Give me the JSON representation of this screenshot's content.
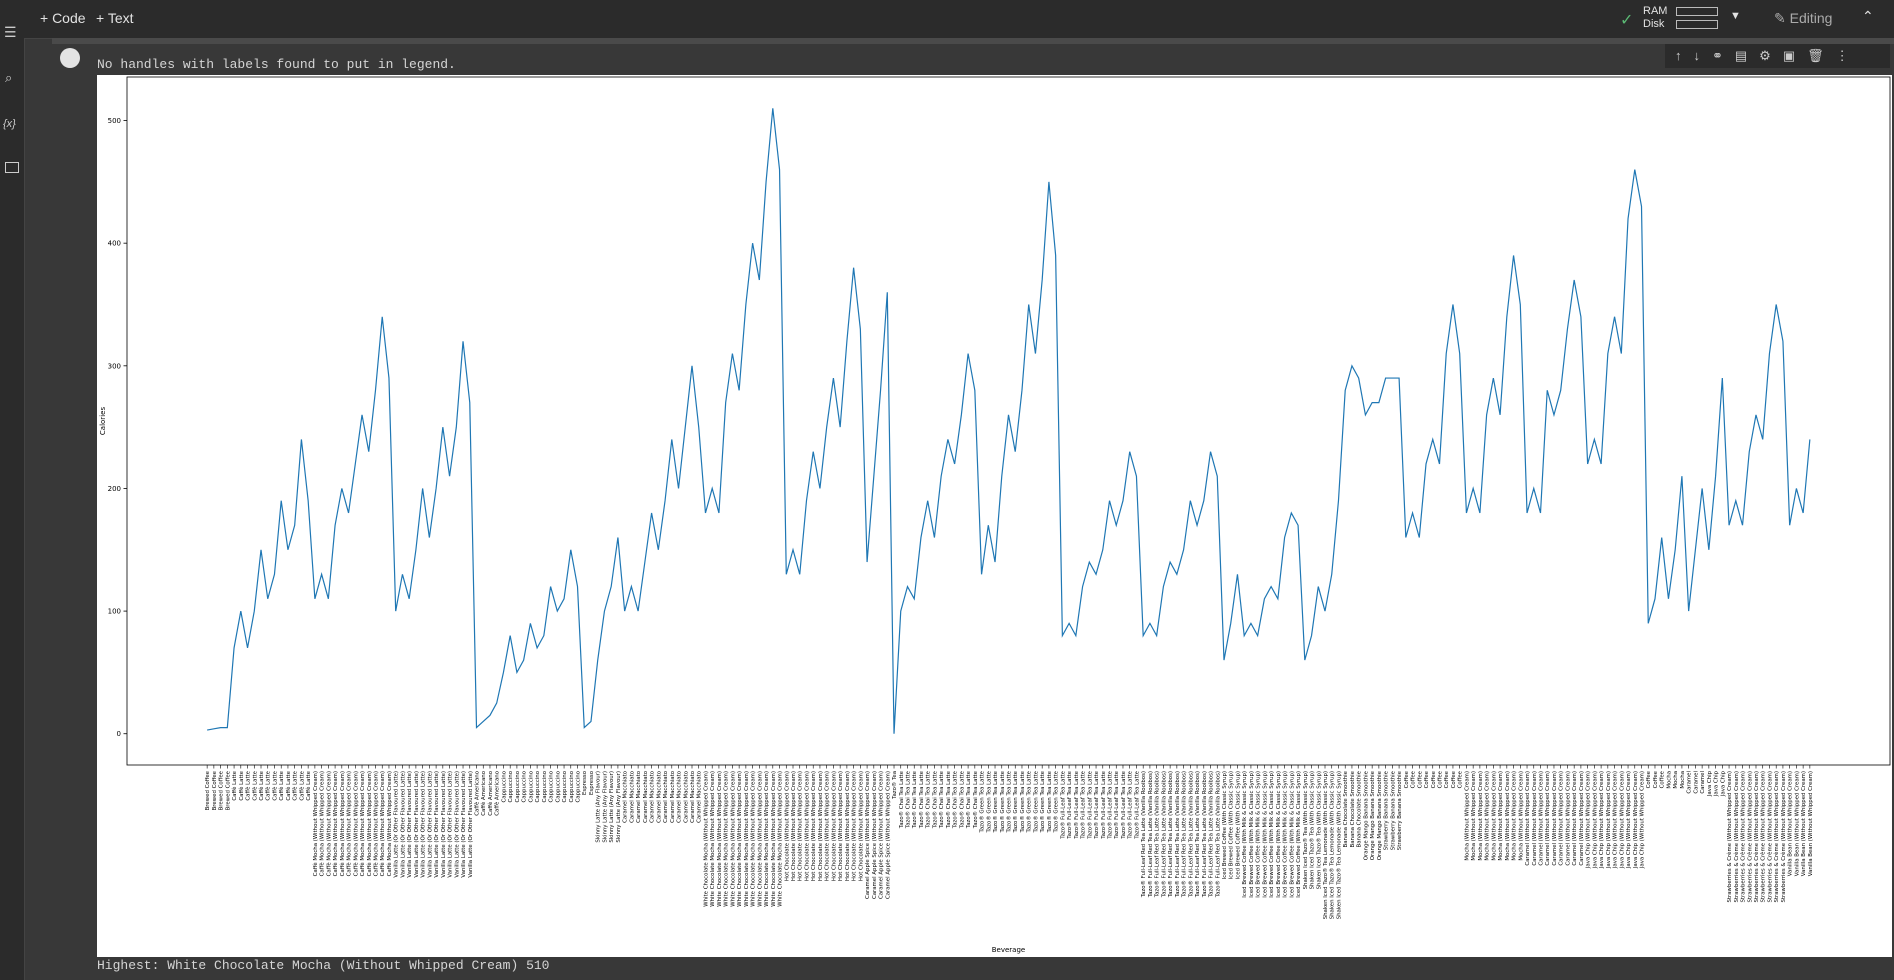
{
  "ui": {
    "add_code": "+ Code",
    "add_text": "+ Text",
    "ram": "RAM",
    "disk": "Disk",
    "editing": "Editing",
    "output_warning": "No handles with labels found to put in legend.",
    "output_result": "Highest: White Chocolate Mocha (Without Whipped Cream) 510"
  },
  "chart_data": {
    "type": "line",
    "xlabel": "Beverage",
    "ylabel": "Calories",
    "color": "#1f77b4",
    "ylim": [
      -25.5,
      535.5
    ],
    "yticks": [
      0,
      100,
      200,
      300,
      400,
      500
    ],
    "categories": [
      "Brewed Coffee",
      "Brewed Coffee",
      "Brewed Coffee",
      "Brewed Coffee",
      "Caffè Latte",
      "Caffè Latte",
      "Caffè Latte",
      "Caffè Latte",
      "Caffè Latte",
      "Caffè Latte",
      "Caffè Latte",
      "Caffè Latte",
      "Caffè Latte",
      "Caffè Latte",
      "Caffè Latte",
      "Caffè Latte",
      "Caffè Mocha (Without Whipped Cream)",
      "Caffè Mocha (Without Whipped Cream)",
      "Caffè Mocha (Without Whipped Cream)",
      "Caffè Mocha (Without Whipped Cream)",
      "Caffè Mocha (Without Whipped Cream)",
      "Caffè Mocha (Without Whipped Cream)",
      "Caffè Mocha (Without Whipped Cream)",
      "Caffè Mocha (Without Whipped Cream)",
      "Caffè Mocha (Without Whipped Cream)",
      "Caffè Mocha (Without Whipped Cream)",
      "Caffè Mocha (Without Whipped Cream)",
      "Caffè Mocha (Without Whipped Cream)",
      "Vanilla Latte (Or Other Flavoured Latte)",
      "Vanilla Latte (Or Other Flavoured Latte)",
      "Vanilla Latte (Or Other Flavoured Latte)",
      "Vanilla Latte (Or Other Flavoured Latte)",
      "Vanilla Latte (Or Other Flavoured Latte)",
      "Vanilla Latte (Or Other Flavoured Latte)",
      "Vanilla Latte (Or Other Flavoured Latte)",
      "Vanilla Latte (Or Other Flavoured Latte)",
      "Vanilla Latte (Or Other Flavoured Latte)",
      "Vanilla Latte (Or Other Flavoured Latte)",
      "Vanilla Latte (Or Other Flavoured Latte)",
      "Vanilla Latte (Or Other Flavoured Latte)",
      "Caffè Americano",
      "Caffè Americano",
      "Caffè Americano",
      "Caffè Americano",
      "Cappuccino",
      "Cappuccino",
      "Cappuccino",
      "Cappuccino",
      "Cappuccino",
      "Cappuccino",
      "Cappuccino",
      "Cappuccino",
      "Cappuccino",
      "Cappuccino",
      "Cappuccino",
      "Cappuccino",
      "Espresso",
      "Espresso",
      "Skinny Latte (Any Flavour)",
      "Skinny Latte (Any Flavour)",
      "Skinny Latte (Any Flavour)",
      "Skinny Latte (Any Flavour)",
      "Caramel Macchiato",
      "Caramel Macchiato",
      "Caramel Macchiato",
      "Caramel Macchiato",
      "Caramel Macchiato",
      "Caramel Macchiato",
      "Caramel Macchiato",
      "Caramel Macchiato",
      "Caramel Macchiato",
      "Caramel Macchiato",
      "Caramel Macchiato",
      "Caramel Macchiato",
      "White Chocolate Mocha (Without Whipped Cream)",
      "White Chocolate Mocha (Without Whipped Cream)",
      "White Chocolate Mocha (Without Whipped Cream)",
      "White Chocolate Mocha (Without Whipped Cream)",
      "White Chocolate Mocha (Without Whipped Cream)",
      "White Chocolate Mocha (Without Whipped Cream)",
      "White Chocolate Mocha (Without Whipped Cream)",
      "White Chocolate Mocha (Without Whipped Cream)",
      "White Chocolate Mocha (Without Whipped Cream)",
      "White Chocolate Mocha (Without Whipped Cream)",
      "White Chocolate Mocha (Without Whipped Cream)",
      "White Chocolate Mocha (Without Whipped Cream)",
      "Hot Chocolate (Without Whipped Cream)",
      "Hot Chocolate (Without Whipped Cream)",
      "Hot Chocolate (Without Whipped Cream)",
      "Hot Chocolate (Without Whipped Cream)",
      "Hot Chocolate (Without Whipped Cream)",
      "Hot Chocolate (Without Whipped Cream)",
      "Hot Chocolate (Without Whipped Cream)",
      "Hot Chocolate (Without Whipped Cream)",
      "Hot Chocolate (Without Whipped Cream)",
      "Hot Chocolate (Without Whipped Cream)",
      "Hot Chocolate (Without Whipped Cream)",
      "Hot Chocolate (Without Whipped Cream)",
      "Caramel Apple Spice (Without Whipped Cream)",
      "Caramel Apple Spice (Without Whipped Cream)",
      "Caramel Apple Spice (Without Whipped Cream)",
      "Caramel Apple Spice (Without Whipped Cream)",
      "Tazo® Tea",
      "Tazo® Chai Tea Latte",
      "Tazo® Chai Tea Latte",
      "Tazo® Chai Tea Latte",
      "Tazo® Chai Tea Latte",
      "Tazo® Chai Tea Latte",
      "Tazo® Chai Tea Latte",
      "Tazo® Chai Tea Latte",
      "Tazo® Chai Tea Latte",
      "Tazo® Chai Tea Latte",
      "Tazo® Chai Tea Latte",
      "Tazo® Chai Tea Latte",
      "Tazo® Chai Tea Latte",
      "Tazo® Green Tea Latte",
      "Tazo® Green Tea Latte",
      "Tazo® Green Tea Latte",
      "Tazo® Green Tea Latte",
      "Tazo® Green Tea Latte",
      "Tazo® Green Tea Latte",
      "Tazo® Green Tea Latte",
      "Tazo® Green Tea Latte",
      "Tazo® Green Tea Latte",
      "Tazo® Green Tea Latte",
      "Tazo® Green Tea Latte",
      "Tazo® Green Tea Latte",
      "Tazo® Full-Leaf Tea Latte",
      "Tazo® Full-Leaf Tea Latte",
      "Tazo® Full-Leaf Tea Latte",
      "Tazo® Full-Leaf Tea Latte",
      "Tazo® Full-Leaf Tea Latte",
      "Tazo® Full-Leaf Tea Latte",
      "Tazo® Full-Leaf Tea Latte",
      "Tazo® Full-Leaf Tea Latte",
      "Tazo® Full-Leaf Tea Latte",
      "Tazo® Full-Leaf Tea Latte",
      "Tazo® Full-Leaf Tea Latte",
      "Tazo® Full-Leaf Tea Latte",
      "Tazo® Full-Leaf Red Tea Latte (Vanilla Rooibos)",
      "Tazo® Full-Leaf Red Tea Latte (Vanilla Rooibos)",
      "Tazo® Full-Leaf Red Tea Latte (Vanilla Rooibos)",
      "Tazo® Full-Leaf Red Tea Latte (Vanilla Rooibos)",
      "Tazo® Full-Leaf Red Tea Latte (Vanilla Rooibos)",
      "Tazo® Full-Leaf Red Tea Latte (Vanilla Rooibos)",
      "Tazo® Full-Leaf Red Tea Latte (Vanilla Rooibos)",
      "Tazo® Full-Leaf Red Tea Latte (Vanilla Rooibos)",
      "Tazo® Full-Leaf Red Tea Latte (Vanilla Rooibos)",
      "Tazo® Full-Leaf Red Tea Latte (Vanilla Rooibos)",
      "Tazo® Full-Leaf Red Tea Latte (Vanilla Rooibos)",
      "Tazo® Full-Leaf Red Tea Latte (Vanilla Rooibos)",
      "Iced Brewed Coffee (With Classic Syrup)",
      "Iced Brewed Coffee (With Classic Syrup)",
      "Iced Brewed Coffee (With Classic Syrup)",
      "Iced Brewed Coffee (With Milk & Classic Syrup)",
      "Iced Brewed Coffee (With Milk & Classic Syrup)",
      "Iced Brewed Coffee (With Milk & Classic Syrup)",
      "Iced Brewed Coffee (With Milk & Classic Syrup)",
      "Iced Brewed Coffee (With Milk & Classic Syrup)",
      "Iced Brewed Coffee (With Milk & Classic Syrup)",
      "Iced Brewed Coffee (With Milk & Classic Syrup)",
      "Iced Brewed Coffee (With Milk & Classic Syrup)",
      "Iced Brewed Coffee (With Milk & Classic Syrup)",
      "Shaken Iced Tazo® Tea (With Classic Syrup)",
      "Shaken Iced Tazo® Tea (With Classic Syrup)",
      "Shaken Iced Tazo® Tea (With Classic Syrup)",
      "Shaken Iced Tazo® Tea Lemonade (With Classic Syrup)",
      "Shaken Iced Tazo® Tea Lemonade (With Classic Syrup)",
      "Shaken Iced Tazo® Tea Lemonade (With Classic Syrup)",
      "Banana Chocolate Smoothie",
      "Banana Chocolate Smoothie",
      "Banana Chocolate Smoothie",
      "Orange Mango Banana Smoothie",
      "Orange Mango Banana Smoothie",
      "Orange Mango Banana Smoothie",
      "Strawberry Banana Smoothie",
      "Strawberry Banana Smoothie",
      "Strawberry Banana Smoothie",
      "Coffee",
      "Coffee",
      "Coffee",
      "Coffee",
      "Coffee",
      "Coffee",
      "Coffee",
      "Coffee",
      "Coffee",
      "Mocha (Without Whipped Cream)",
      "Mocha (Without Whipped Cream)",
      "Mocha (Without Whipped Cream)",
      "Mocha (Without Whipped Cream)",
      "Mocha (Without Whipped Cream)",
      "Mocha (Without Whipped Cream)",
      "Mocha (Without Whipped Cream)",
      "Mocha (Without Whipped Cream)",
      "Mocha (Without Whipped Cream)",
      "Caramel (Without Whipped Cream)",
      "Caramel (Without Whipped Cream)",
      "Caramel (Without Whipped Cream)",
      "Caramel (Without Whipped Cream)",
      "Caramel (Without Whipped Cream)",
      "Caramel (Without Whipped Cream)",
      "Caramel (Without Whipped Cream)",
      "Caramel (Without Whipped Cream)",
      "Caramel (Without Whipped Cream)",
      "Java Chip (Without Whipped Cream)",
      "Java Chip (Without Whipped Cream)",
      "Java Chip (Without Whipped Cream)",
      "Java Chip (Without Whipped Cream)",
      "Java Chip (Without Whipped Cream)",
      "Java Chip (Without Whipped Cream)",
      "Java Chip (Without Whipped Cream)",
      "Java Chip (Without Whipped Cream)",
      "Java Chip (Without Whipped Cream)",
      "Coffee",
      "Coffee",
      "Coffee",
      "Mocha",
      "Mocha",
      "Mocha",
      "Caramel",
      "Caramel",
      "Caramel",
      "Java Chip",
      "Java Chip",
      "Java Chip",
      "Strawberries & Crème (Without Whipped Cream)",
      "Strawberries & Crème (Without Whipped Cream)",
      "Strawberries & Crème (Without Whipped Cream)",
      "Strawberries & Crème (Without Whipped Cream)",
      "Strawberries & Crème (Without Whipped Cream)",
      "Strawberries & Crème (Without Whipped Cream)",
      "Strawberries & Crème (Without Whipped Cream)",
      "Strawberries & Crème (Without Whipped Cream)",
      "Strawberries & Crème (Without Whipped Cream)",
      "Vanilla Bean (Without Whipped Cream)",
      "Vanilla Bean (Without Whipped Cream)",
      "Vanilla Bean (Without Whipped Cream)",
      "Vanilla Bean (Without Whipped Cream)"
    ],
    "values": [
      3,
      4,
      5,
      5,
      70,
      100,
      70,
      100,
      150,
      110,
      130,
      190,
      150,
      170,
      240,
      190,
      110,
      130,
      110,
      170,
      200,
      180,
      220,
      260,
      230,
      280,
      340,
      290,
      100,
      130,
      110,
      150,
      200,
      160,
      200,
      250,
      210,
      250,
      320,
      270,
      5,
      10,
      15,
      25,
      50,
      80,
      50,
      60,
      90,
      70,
      80,
      120,
      100,
      110,
      150,
      120,
      5,
      10,
      60,
      100,
      120,
      160,
      100,
      120,
      100,
      140,
      180,
      150,
      190,
      240,
      200,
      250,
      300,
      250,
      180,
      200,
      180,
      270,
      310,
      280,
      350,
      400,
      370,
      450,
      510,
      460,
      130,
      150,
      130,
      190,
      230,
      200,
      250,
      290,
      250,
      320,
      380,
      330,
      140,
      210,
      280,
      360,
      0,
      100,
      120,
      110,
      160,
      190,
      160,
      210,
      240,
      220,
      260,
      310,
      280,
      130,
      170,
      140,
      210,
      260,
      230,
      280,
      350,
      310,
      370,
      450,
      390,
      80,
      90,
      80,
      120,
      140,
      130,
      150,
      190,
      170,
      190,
      230,
      210,
      80,
      90,
      80,
      120,
      140,
      130,
      150,
      190,
      170,
      190,
      230,
      210,
      60,
      90,
      130,
      80,
      90,
      80,
      110,
      120,
      110,
      160,
      180,
      170,
      60,
      80,
      120,
      100,
      130,
      190,
      280,
      300,
      290,
      260,
      270,
      270,
      290,
      290,
      290,
      160,
      180,
      160,
      220,
      240,
      220,
      310,
      350,
      310,
      180,
      200,
      180,
      260,
      290,
      260,
      340,
      390,
      350,
      180,
      200,
      180,
      280,
      260,
      280,
      330,
      370,
      340,
      220,
      240,
      220,
      310,
      340,
      310,
      420,
      460,
      430,
      90,
      110,
      160,
      110,
      150,
      210,
      100,
      150,
      200,
      150,
      210,
      290,
      170,
      190,
      170,
      230,
      260,
      240,
      310,
      350,
      320,
      170,
      200,
      180,
      240
    ]
  }
}
